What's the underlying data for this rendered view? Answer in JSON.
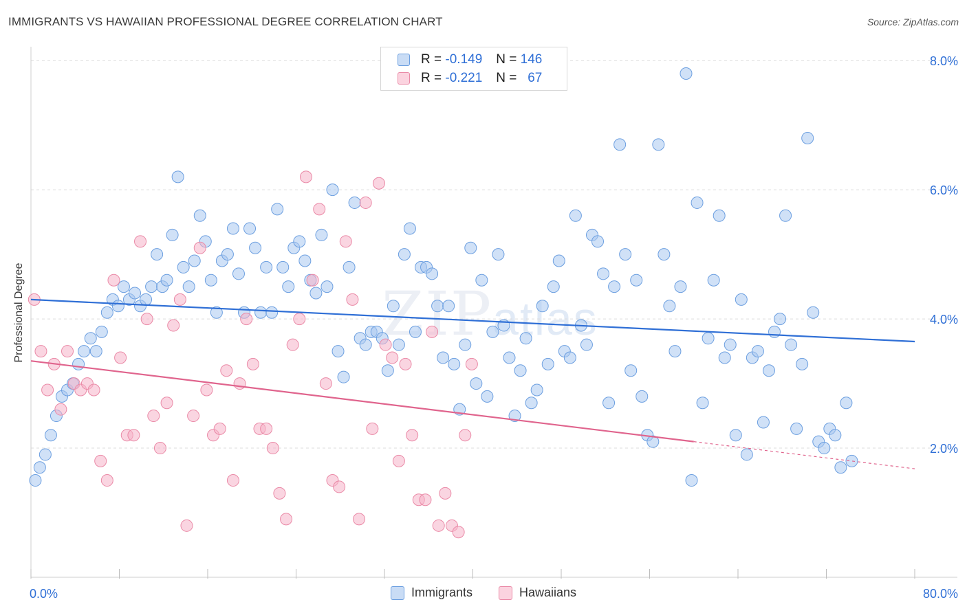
{
  "title": "IMMIGRANTS VS HAWAIIAN PROFESSIONAL DEGREE CORRELATION CHART",
  "source": "Source: ZipAtlas.com",
  "watermark": {
    "zip": "ZIP",
    "atlas": "atlas"
  },
  "legend_top": [
    {
      "r_label": "R =",
      "r_value": "-0.149",
      "n_label": "N =",
      "n_value": "146",
      "color": "#a9c8f0"
    },
    {
      "r_label": "R =",
      "r_value": "-0.221",
      "n_label": "N =",
      "n_value": "67",
      "color": "#f5b3c8"
    }
  ],
  "legend_bottom": [
    {
      "label": "Immigrants",
      "color": "#a9c8f0"
    },
    {
      "label": "Hawaiians",
      "color": "#f5b3c8"
    }
  ],
  "chart_data": {
    "type": "scatter",
    "ylabel": "Professional Degree",
    "xlim": [
      0,
      80
    ],
    "ylim": [
      0,
      8.3
    ],
    "x_tick_labels": [
      {
        "x": 0,
        "label": "0.0%"
      },
      {
        "x": 80,
        "label": "80.0%"
      }
    ],
    "y_tick_labels": [
      {
        "y": 2,
        "label": "2.0%"
      },
      {
        "y": 4,
        "label": "4.0%"
      },
      {
        "y": 6,
        "label": "6.0%"
      },
      {
        "y": 8,
        "label": "8.0%"
      }
    ],
    "grid": "horizontal dashed",
    "series": [
      {
        "name": "Immigrants",
        "color": "#a9c8f0",
        "stroke": "#6c9fe0",
        "trend": {
          "x": [
            0,
            80
          ],
          "y": [
            4.3,
            3.65
          ],
          "color": "#2f6fd6"
        },
        "points": [
          [
            0.4,
            1.5
          ],
          [
            0.8,
            1.7
          ],
          [
            1.3,
            1.9
          ],
          [
            1.8,
            2.2
          ],
          [
            2.3,
            2.5
          ],
          [
            2.8,
            2.8
          ],
          [
            3.3,
            2.9
          ],
          [
            3.8,
            3.0
          ],
          [
            4.3,
            3.3
          ],
          [
            4.8,
            3.5
          ],
          [
            5.4,
            3.7
          ],
          [
            5.9,
            3.5
          ],
          [
            6.4,
            3.8
          ],
          [
            6.9,
            4.1
          ],
          [
            7.4,
            4.3
          ],
          [
            7.9,
            4.2
          ],
          [
            8.4,
            4.5
          ],
          [
            8.9,
            4.3
          ],
          [
            9.4,
            4.4
          ],
          [
            9.9,
            4.2
          ],
          [
            10.4,
            4.3
          ],
          [
            10.9,
            4.5
          ],
          [
            11.4,
            5.0
          ],
          [
            11.9,
            4.5
          ],
          [
            12.3,
            4.6
          ],
          [
            12.8,
            5.3
          ],
          [
            13.3,
            6.2
          ],
          [
            13.8,
            4.8
          ],
          [
            14.3,
            4.5
          ],
          [
            14.8,
            4.9
          ],
          [
            15.3,
            5.6
          ],
          [
            15.8,
            5.2
          ],
          [
            16.3,
            4.6
          ],
          [
            16.8,
            4.1
          ],
          [
            17.3,
            4.9
          ],
          [
            17.8,
            5.0
          ],
          [
            18.3,
            5.4
          ],
          [
            18.8,
            4.7
          ],
          [
            19.3,
            4.1
          ],
          [
            19.8,
            5.4
          ],
          [
            20.3,
            5.1
          ],
          [
            20.8,
            4.1
          ],
          [
            21.3,
            4.8
          ],
          [
            21.8,
            4.1
          ],
          [
            22.3,
            5.7
          ],
          [
            22.8,
            4.8
          ],
          [
            23.3,
            4.5
          ],
          [
            23.8,
            5.1
          ],
          [
            24.3,
            5.2
          ],
          [
            24.8,
            4.9
          ],
          [
            25.3,
            4.6
          ],
          [
            25.8,
            4.4
          ],
          [
            26.3,
            5.3
          ],
          [
            26.8,
            4.5
          ],
          [
            27.3,
            6.0
          ],
          [
            27.8,
            3.5
          ],
          [
            28.3,
            3.1
          ],
          [
            28.8,
            4.8
          ],
          [
            29.3,
            5.8
          ],
          [
            29.8,
            3.7
          ],
          [
            30.3,
            3.6
          ],
          [
            30.8,
            3.8
          ],
          [
            31.3,
            3.8
          ],
          [
            31.8,
            3.7
          ],
          [
            32.3,
            3.2
          ],
          [
            32.8,
            4.2
          ],
          [
            33.3,
            3.6
          ],
          [
            33.8,
            5.0
          ],
          [
            34.3,
            5.4
          ],
          [
            34.8,
            3.8
          ],
          [
            35.3,
            4.8
          ],
          [
            35.8,
            4.8
          ],
          [
            36.3,
            4.7
          ],
          [
            36.8,
            4.2
          ],
          [
            37.3,
            3.4
          ],
          [
            37.8,
            4.2
          ],
          [
            38.3,
            3.3
          ],
          [
            38.8,
            2.6
          ],
          [
            39.3,
            3.6
          ],
          [
            39.8,
            5.1
          ],
          [
            40.3,
            3.0
          ],
          [
            40.8,
            4.6
          ],
          [
            41.3,
            2.8
          ],
          [
            41.8,
            3.8
          ],
          [
            42.3,
            5.0
          ],
          [
            42.8,
            3.9
          ],
          [
            43.3,
            3.4
          ],
          [
            43.8,
            2.5
          ],
          [
            44.3,
            3.2
          ],
          [
            44.8,
            3.7
          ],
          [
            45.3,
            2.7
          ],
          [
            45.8,
            2.9
          ],
          [
            46.3,
            4.2
          ],
          [
            46.8,
            3.3
          ],
          [
            47.3,
            4.5
          ],
          [
            47.8,
            4.9
          ],
          [
            48.3,
            3.5
          ],
          [
            48.8,
            3.4
          ],
          [
            49.3,
            5.6
          ],
          [
            49.8,
            3.9
          ],
          [
            50.3,
            3.6
          ],
          [
            50.8,
            5.3
          ],
          [
            51.3,
            5.2
          ],
          [
            51.8,
            4.7
          ],
          [
            52.3,
            2.7
          ],
          [
            52.8,
            4.5
          ],
          [
            53.3,
            6.7
          ],
          [
            53.8,
            5.0
          ],
          [
            54.3,
            3.2
          ],
          [
            54.8,
            4.6
          ],
          [
            55.3,
            2.8
          ],
          [
            55.8,
            2.2
          ],
          [
            56.3,
            2.1
          ],
          [
            56.8,
            6.7
          ],
          [
            57.3,
            5.0
          ],
          [
            57.8,
            4.2
          ],
          [
            58.3,
            3.5
          ],
          [
            58.8,
            4.5
          ],
          [
            59.3,
            7.8
          ],
          [
            59.8,
            1.5
          ],
          [
            60.3,
            5.8
          ],
          [
            60.8,
            2.7
          ],
          [
            61.3,
            3.7
          ],
          [
            61.8,
            4.6
          ],
          [
            62.3,
            5.6
          ],
          [
            62.8,
            3.4
          ],
          [
            63.3,
            3.6
          ],
          [
            63.8,
            2.2
          ],
          [
            64.3,
            4.3
          ],
          [
            64.8,
            1.9
          ],
          [
            65.3,
            3.4
          ],
          [
            65.8,
            3.5
          ],
          [
            66.3,
            2.4
          ],
          [
            66.8,
            3.2
          ],
          [
            67.3,
            3.8
          ],
          [
            67.8,
            4.0
          ],
          [
            68.3,
            5.6
          ],
          [
            68.8,
            3.6
          ],
          [
            69.3,
            2.3
          ],
          [
            69.8,
            3.3
          ],
          [
            70.3,
            6.8
          ],
          [
            70.8,
            4.1
          ],
          [
            71.3,
            2.1
          ],
          [
            71.8,
            2.0
          ],
          [
            72.3,
            2.3
          ],
          [
            72.8,
            2.2
          ],
          [
            73.3,
            1.7
          ],
          [
            73.8,
            2.7
          ],
          [
            74.3,
            1.8
          ]
        ]
      },
      {
        "name": "Hawaiians",
        "color": "#f5b3c8",
        "stroke": "#ea8aa7",
        "trend": {
          "x": [
            0,
            60
          ],
          "y": [
            3.35,
            2.1
          ],
          "color": "#e0648d",
          "dashed_to": {
            "x": 80,
            "y": 1.68
          }
        },
        "points": [
          [
            0.3,
            4.3
          ],
          [
            0.9,
            3.5
          ],
          [
            1.5,
            2.9
          ],
          [
            2.1,
            3.3
          ],
          [
            2.7,
            2.6
          ],
          [
            3.3,
            3.5
          ],
          [
            3.9,
            3.0
          ],
          [
            4.5,
            2.9
          ],
          [
            5.1,
            3.0
          ],
          [
            5.7,
            2.9
          ],
          [
            6.3,
            1.8
          ],
          [
            6.9,
            1.5
          ],
          [
            7.5,
            4.6
          ],
          [
            8.1,
            3.4
          ],
          [
            8.7,
            2.2
          ],
          [
            9.3,
            2.2
          ],
          [
            9.9,
            5.2
          ],
          [
            10.5,
            4.0
          ],
          [
            11.1,
            2.5
          ],
          [
            11.7,
            2.0
          ],
          [
            12.3,
            2.7
          ],
          [
            12.9,
            3.9
          ],
          [
            13.5,
            4.3
          ],
          [
            14.1,
            0.8
          ],
          [
            14.7,
            2.5
          ],
          [
            15.3,
            5.1
          ],
          [
            15.9,
            2.9
          ],
          [
            16.5,
            2.2
          ],
          [
            17.1,
            2.3
          ],
          [
            17.7,
            3.2
          ],
          [
            18.3,
            1.5
          ],
          [
            18.9,
            3.0
          ],
          [
            19.5,
            4.0
          ],
          [
            20.1,
            3.3
          ],
          [
            20.7,
            2.3
          ],
          [
            21.3,
            2.3
          ],
          [
            21.9,
            2.0
          ],
          [
            22.5,
            1.3
          ],
          [
            23.1,
            0.9
          ],
          [
            23.7,
            3.6
          ],
          [
            24.3,
            4.0
          ],
          [
            24.9,
            6.2
          ],
          [
            25.5,
            4.6
          ],
          [
            26.1,
            5.7
          ],
          [
            26.7,
            3.0
          ],
          [
            27.3,
            1.5
          ],
          [
            27.9,
            1.4
          ],
          [
            28.5,
            5.2
          ],
          [
            29.1,
            4.3
          ],
          [
            29.7,
            0.9
          ],
          [
            30.3,
            5.8
          ],
          [
            30.9,
            2.3
          ],
          [
            31.5,
            6.1
          ],
          [
            32.1,
            3.6
          ],
          [
            32.7,
            3.4
          ],
          [
            33.3,
            1.8
          ],
          [
            33.9,
            3.3
          ],
          [
            34.5,
            2.2
          ],
          [
            35.1,
            1.2
          ],
          [
            35.7,
            1.2
          ],
          [
            36.3,
            3.8
          ],
          [
            36.9,
            0.8
          ],
          [
            37.5,
            1.3
          ],
          [
            38.1,
            0.8
          ],
          [
            38.7,
            0.7
          ],
          [
            39.3,
            2.2
          ],
          [
            39.9,
            3.3
          ]
        ]
      }
    ]
  }
}
